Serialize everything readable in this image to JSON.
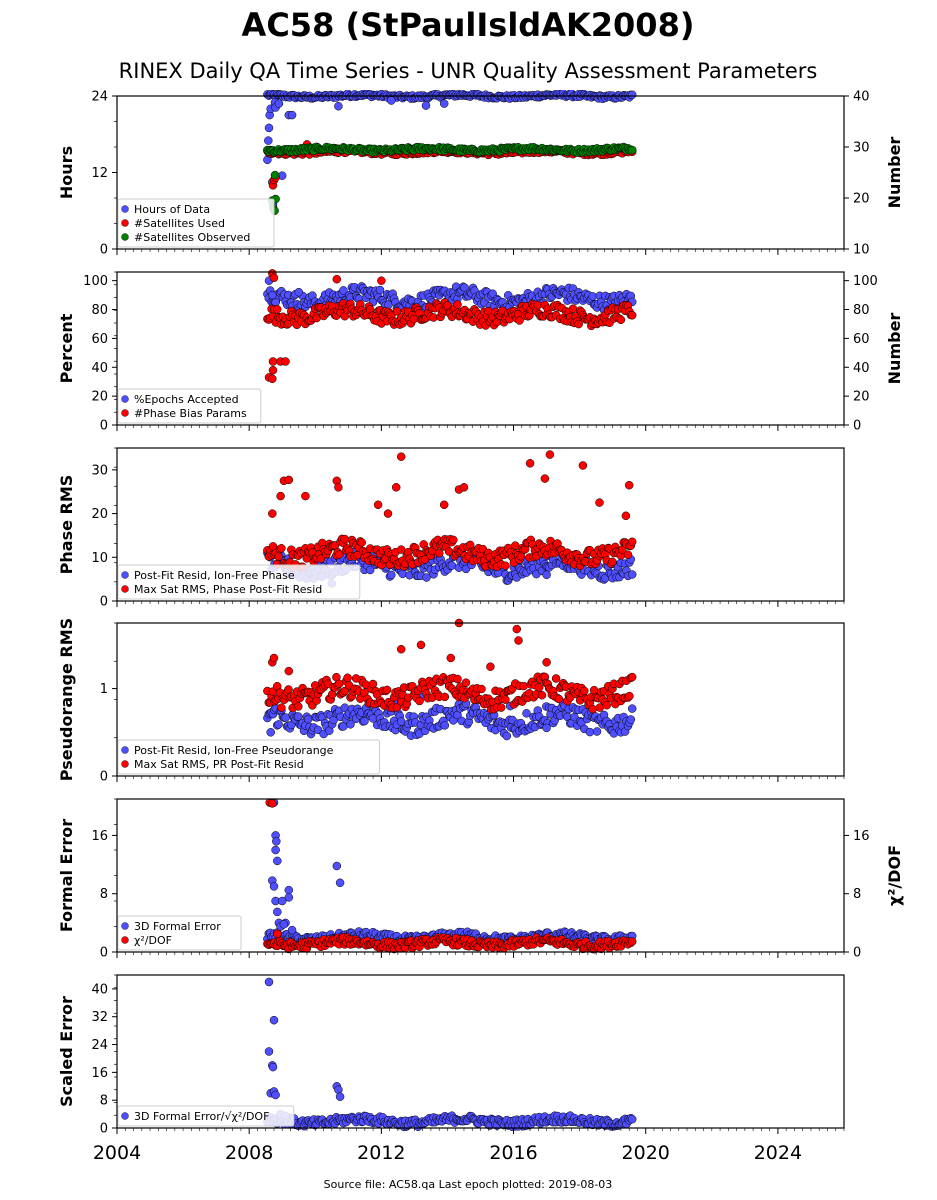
{
  "title": "AC58 (StPaulIsldAK2008)",
  "subtitle": "RINEX Daily QA Time Series - UNR Quality Assessment Parameters",
  "footer": "Source file: AC58.qa Last epoch plotted: 2019-08-03",
  "colors": {
    "blue": "#4f4fff",
    "red": "#ff0000",
    "green": "#008000",
    "edge": "#000000"
  },
  "x_axis": {
    "range": [
      2004.0,
      2026.0
    ],
    "tick_labels": [
      "2004",
      "2008",
      "2012",
      "2016",
      "2020",
      "2024"
    ]
  },
  "chart_data": [
    {
      "type": "scatter",
      "left_ylabel": "Hours",
      "right_ylabel": "Number",
      "left_ylim": [
        0,
        24
      ],
      "right_ylim": [
        10,
        40
      ],
      "left_ticks": [
        "0",
        "12",
        "24"
      ],
      "right_ticks": [
        "10",
        "20",
        "30",
        "40"
      ],
      "legend": [
        "Hours of Data",
        "#Satellites Used",
        "#Satellites Observed"
      ],
      "series": [
        {
          "name": "Hours of Data",
          "color": "blue",
          "axis": "left",
          "typical": 24,
          "x_range": [
            2008.55,
            2019.59
          ],
          "points": [
            [
              2008.55,
              14
            ],
            [
              2008.58,
              17
            ],
            [
              2008.6,
              19
            ],
            [
              2008.62,
              21
            ],
            [
              2008.65,
              22
            ],
            [
              2008.7,
              10.5
            ],
            [
              2008.72,
              7
            ],
            [
              2008.78,
              23
            ],
            [
              2008.8,
              22.2
            ],
            [
              2008.9,
              22.8
            ],
            [
              2009.0,
              11.5
            ],
            [
              2009.2,
              21
            ],
            [
              2009.3,
              21
            ],
            [
              2010.7,
              22.4
            ],
            [
              2012.3,
              23.3
            ],
            [
              2013.35,
              22.5
            ],
            [
              2013.9,
              22.8
            ]
          ]
        },
        {
          "name": "#Satellites Used",
          "color": "red",
          "axis": "right",
          "typical": 29,
          "x_range": [
            2008.55,
            2019.59
          ],
          "points": [
            [
              2008.72,
              22.5
            ],
            [
              2008.75,
              23.5
            ],
            [
              2008.8,
              24
            ],
            [
              2009.75,
              30.5
            ]
          ]
        },
        {
          "name": "#Satellites Observed",
          "color": "green",
          "axis": "right",
          "typical": 29.5,
          "x_range": [
            2008.55,
            2019.59
          ],
          "points": [
            [
              2008.7,
              19.5
            ],
            [
              2008.73,
              18
            ],
            [
              2008.77,
              17.5
            ],
            [
              2008.8,
              19.8
            ],
            [
              2008.78,
              24.5
            ]
          ]
        }
      ]
    },
    {
      "type": "scatter",
      "left_ylabel": "Percent",
      "right_ylabel": "Number",
      "left_ylim": [
        0,
        106
      ],
      "right_ylim": [
        0,
        106
      ],
      "left_ticks": [
        "0",
        "20",
        "40",
        "60",
        "80",
        "100"
      ],
      "right_ticks": [
        "0",
        "20",
        "40",
        "60",
        "80",
        "100"
      ],
      "legend": [
        "%Epochs Accepted",
        "#Phase Bias Params"
      ],
      "series": [
        {
          "name": "%Epochs Accepted",
          "color": "blue",
          "axis": "left",
          "typical": 88,
          "x_range": [
            2008.55,
            2019.59
          ],
          "points": [
            [
              2008.6,
              100
            ],
            [
              2008.7,
              90
            ],
            [
              2008.8,
              85
            ],
            [
              2009.5,
              92
            ]
          ]
        },
        {
          "name": "#Phase Bias Params",
          "color": "red",
          "axis": "right",
          "typical": 77,
          "x_range": [
            2008.55,
            2019.59
          ],
          "points": [
            [
              2008.6,
              33
            ],
            [
              2008.7,
              32
            ],
            [
              2008.72,
              38
            ],
            [
              2008.72,
              44
            ],
            [
              2008.95,
              44
            ],
            [
              2009.1,
              44
            ],
            [
              2008.7,
              105
            ],
            [
              2008.75,
              102
            ],
            [
              2010.65,
              101
            ],
            [
              2012.0,
              100
            ]
          ]
        }
      ]
    },
    {
      "type": "scatter",
      "left_ylabel": "Phase RMS",
      "left_ylim": [
        0,
        35
      ],
      "left_ticks": [
        "0",
        "10",
        "20",
        "30"
      ],
      "legend": [
        "Post-Fit Resid, Ion-Free Phase",
        "Max Sat RMS, Phase Post-Fit Resid"
      ],
      "series": [
        {
          "name": "Post-Fit Resid, Ion-Free Phase",
          "color": "blue",
          "axis": "left",
          "typical": 8,
          "x_range": [
            2008.55,
            2019.59
          ],
          "points": [
            [
              2010.5,
              4
            ],
            [
              2013.0,
              8.5
            ],
            [
              2017.0,
              6
            ]
          ]
        },
        {
          "name": "Max Sat RMS, Phase Post-Fit Resid",
          "color": "red",
          "axis": "left",
          "typical": 11,
          "x_range": [
            2008.55,
            2019.59
          ],
          "points": [
            [
              2008.7,
              20
            ],
            [
              2009.05,
              27.5
            ],
            [
              2009.2,
              27.7
            ],
            [
              2008.95,
              24
            ],
            [
              2009.7,
              24
            ],
            [
              2010.65,
              27.5
            ],
            [
              2010.7,
              26
            ],
            [
              2012.45,
              26
            ],
            [
              2012.6,
              33
            ],
            [
              2014.35,
              25.5
            ],
            [
              2014.5,
              26
            ],
            [
              2016.5,
              31.5
            ],
            [
              2016.95,
              28
            ],
            [
              2017.1,
              33.5
            ],
            [
              2018.1,
              31
            ],
            [
              2018.6,
              22.5
            ],
            [
              2019.4,
              19.5
            ],
            [
              2019.5,
              26.5
            ],
            [
              2011.9,
              22
            ],
            [
              2012.2,
              20
            ],
            [
              2013.9,
              22
            ]
          ]
        }
      ]
    },
    {
      "type": "scatter",
      "left_ylabel": "Pseudorange RMS",
      "left_ylim": [
        0,
        1.75
      ],
      "left_ticks": [
        "0",
        "1"
      ],
      "legend": [
        "Post-Fit Resid, Ion-Free Pseudorange",
        "Max Sat RMS, PR Post-Fit Resid"
      ],
      "series": [
        {
          "name": "Post-Fit Resid, Ion-Free Pseudorange",
          "color": "blue",
          "axis": "left",
          "typical": 0.65,
          "x_range": [
            2008.55,
            2019.59
          ],
          "points": [
            [
              2008.65,
              0.5
            ],
            [
              2012.5,
              0.85
            ],
            [
              2013.2,
              0.9
            ],
            [
              2015.9,
              0.8
            ],
            [
              2017.0,
              0.55
            ]
          ]
        },
        {
          "name": "Max Sat RMS, PR Post-Fit Resid",
          "color": "red",
          "axis": "left",
          "typical": 0.95,
          "x_range": [
            2008.55,
            2019.59
          ],
          "points": [
            [
              2008.7,
              1.3
            ],
            [
              2008.75,
              1.35
            ],
            [
              2009.2,
              1.2
            ],
            [
              2012.6,
              1.45
            ],
            [
              2013.2,
              1.5
            ],
            [
              2014.35,
              1.75
            ],
            [
              2015.3,
              1.25
            ],
            [
              2016.1,
              1.68
            ],
            [
              2016.15,
              1.55
            ],
            [
              2017.0,
              1.3
            ],
            [
              2014.1,
              1.35
            ]
          ]
        }
      ]
    },
    {
      "type": "scatter",
      "left_ylabel": "Formal Error",
      "right_ylabel": "χ²/DOF",
      "left_ylim": [
        0,
        21
      ],
      "right_ylim": [
        0,
        21
      ],
      "left_ticks": [
        "0",
        "8",
        "16"
      ],
      "right_ticks": [
        "0",
        "8",
        "16"
      ],
      "legend": [
        "3D Formal Error",
        "χ²/DOF"
      ],
      "series": [
        {
          "name": "3D Formal Error",
          "color": "blue",
          "axis": "left",
          "typical": 2,
          "x_range": [
            2008.55,
            2019.59
          ],
          "points": [
            [
              2008.75,
              20.5
            ],
            [
              2008.8,
              16
            ],
            [
              2008.82,
              15.2
            ],
            [
              2008.8,
              14
            ],
            [
              2008.85,
              12.5
            ],
            [
              2008.7,
              9.8
            ],
            [
              2008.75,
              9
            ],
            [
              2008.8,
              7
            ],
            [
              2008.85,
              5.5
            ],
            [
              2008.9,
              4
            ],
            [
              2009.0,
              7
            ],
            [
              2009.2,
              8.5
            ],
            [
              2009.2,
              7.5
            ],
            [
              2009.1,
              4
            ],
            [
              2009.3,
              3
            ],
            [
              2010.65,
              11.8
            ],
            [
              2010.75,
              9.5
            ],
            [
              2008.95,
              3.5
            ],
            [
              2009.05,
              3.8
            ]
          ]
        },
        {
          "name": "χ²/DOF",
          "color": "red",
          "axis": "left",
          "typical": 1.2,
          "x_range": [
            2008.55,
            2019.59
          ],
          "points": [
            [
              2008.62,
              20.5
            ],
            [
              2008.7,
              20.4
            ],
            [
              2008.85,
              2.5
            ]
          ]
        }
      ]
    },
    {
      "type": "scatter",
      "left_ylabel": "Scaled Error",
      "left_ylim": [
        0,
        44
      ],
      "left_ticks": [
        "0",
        "8",
        "16",
        "24",
        "32",
        "40"
      ],
      "legend": [
        "3D Formal Error/√χ²/DOF"
      ],
      "series": [
        {
          "name": "3D Formal Error/√χ²/DOF",
          "color": "blue",
          "axis": "left",
          "typical": 2,
          "x_range": [
            2008.55,
            2019.59
          ],
          "points": [
            [
              2008.6,
              42
            ],
            [
              2008.75,
              31
            ],
            [
              2008.6,
              22
            ],
            [
              2008.7,
              18
            ],
            [
              2008.72,
              17.5
            ],
            [
              2008.65,
              10
            ],
            [
              2008.75,
              10.5
            ],
            [
              2008.8,
              9.5
            ],
            [
              2010.65,
              12
            ],
            [
              2010.7,
              11
            ],
            [
              2010.75,
              9
            ],
            [
              2008.95,
              4
            ],
            [
              2009.1,
              3.5
            ]
          ]
        }
      ]
    }
  ]
}
